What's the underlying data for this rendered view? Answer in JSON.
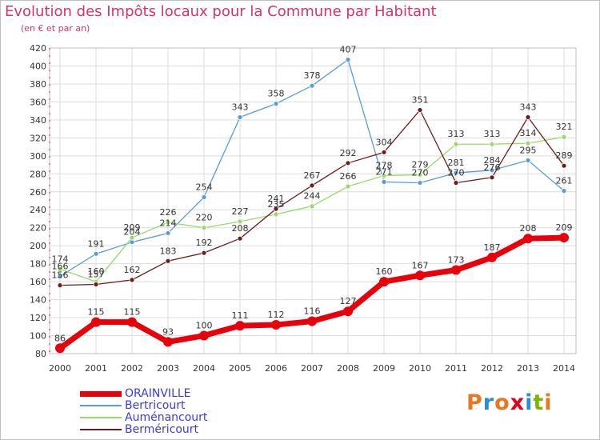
{
  "title": "Evolution des Impôts locaux pour la Commune par Habitant",
  "subtitle": "(en € et par an)",
  "logo": {
    "text": "Proxiti",
    "colors": [
      "#e87722",
      "#2a8fd0",
      "#e87722",
      "#e2001a",
      "#2a8fd0",
      "#7ab800",
      "#e87722"
    ]
  },
  "chart_data": {
    "type": "line",
    "title": "Evolution des Impôts locaux pour la Commune par Habitant",
    "subtitle": "(en € et par an)",
    "xlabel": "",
    "ylabel": "",
    "x": [
      "2000",
      "2001",
      "2002",
      "2003",
      "2004",
      "2005",
      "2006",
      "2007",
      "2008",
      "2009",
      "2010",
      "2011",
      "2012",
      "2013",
      "2014"
    ],
    "ylim": [
      80,
      420
    ],
    "yticks": [
      80,
      100,
      120,
      140,
      160,
      180,
      200,
      220,
      240,
      260,
      280,
      300,
      320,
      340,
      360,
      380,
      400,
      420
    ],
    "grid": true,
    "legend": "bottom-left",
    "series": [
      {
        "name": "ORAINVILLE",
        "color": "#e8000b",
        "values": [
          86,
          115,
          115,
          93,
          100,
          111,
          112,
          116,
          127,
          160,
          167,
          173,
          187,
          208,
          209
        ]
      },
      {
        "name": "Bertricourt",
        "color": "#5a9bd4",
        "values": [
          166,
          191,
          204,
          214,
          254,
          343,
          358,
          378,
          407,
          271,
          270,
          281,
          284,
          295,
          261
        ]
      },
      {
        "name": "Auménancourt",
        "color": "#99d96b",
        "values": [
          174,
          160,
          209,
          226,
          220,
          227,
          235,
          244,
          266,
          278,
          279,
          313,
          313,
          314,
          321
        ]
      },
      {
        "name": "Berméricourt",
        "color": "#6b1d1d",
        "values": [
          156,
          157,
          162,
          183,
          192,
          208,
          241,
          267,
          292,
          304,
          351,
          270,
          276,
          343,
          289
        ]
      }
    ],
    "data_labels": [
      [
        86,
        115,
        115,
        93,
        100,
        111,
        112,
        116,
        127,
        160,
        167,
        173,
        187,
        208,
        209
      ],
      [
        166,
        191,
        204,
        214,
        254,
        343,
        358,
        378,
        407,
        271,
        270,
        281,
        284,
        295,
        261
      ],
      [
        174,
        160,
        209,
        226,
        220,
        227,
        235,
        244,
        266,
        278,
        279,
        313,
        313,
        314,
        321
      ],
      [
        156,
        157,
        162,
        183,
        192,
        208,
        241,
        267,
        292,
        304,
        351,
        270,
        276,
        343,
        289
      ]
    ]
  }
}
